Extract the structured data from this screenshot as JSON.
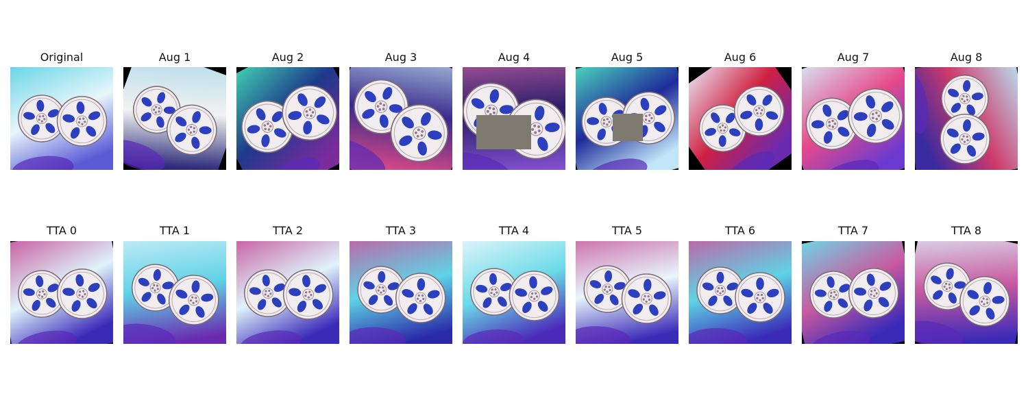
{
  "figure": {
    "rows": [
      {
        "name": "augmentations",
        "panels": [
          {
            "title": "Original",
            "rotation": -6,
            "scale": 1.0,
            "bg": [
              "#e8f6fb",
              "#5fd3e6",
              "#5a5ad6"
            ],
            "occluder": false
          },
          {
            "title": "Aug 1",
            "rotation": 20,
            "scale": 1.0,
            "bg": [
              "#f2f2f2",
              "#a8d8e8",
              "#2b2b7a"
            ],
            "occluder": false
          },
          {
            "title": "Aug 2",
            "rotation": -28,
            "scale": 1.1,
            "bg": [
              "#1d3a8a",
              "#45e0b6",
              "#7a2b9c"
            ],
            "occluder": false
          },
          {
            "title": "Aug 3",
            "rotation": 25,
            "scale": 1.15,
            "bg": [
              "#3a2a8c",
              "#c2e6f2",
              "#e04a86"
            ],
            "occluder": false
          },
          {
            "title": "Aug 4",
            "rotation": 12,
            "scale": 1.2,
            "bg": [
              "#2a1d6b",
              "#d86aa8",
              "#8a55d8"
            ],
            "occluder": true
          },
          {
            "title": "Aug 5",
            "rotation": -15,
            "scale": 1.05,
            "bg": [
              "#1f2b9a",
              "#4fe0c0",
              "#c0e6f8"
            ],
            "occluder": true
          },
          {
            "title": "Aug 6",
            "rotation": -35,
            "scale": 1.0,
            "bg": [
              "#d02040",
              "#e8eaf8",
              "#6a2ab0"
            ],
            "occluder": false
          },
          {
            "title": "Aug 7",
            "rotation": -20,
            "scale": 1.1,
            "bg": [
              "#e64a8a",
              "#d6f0fa",
              "#6a3ad0"
            ],
            "occluder": false
          },
          {
            "title": "Aug 8",
            "rotation": 80,
            "scale": 1.0,
            "bg": [
              "#cf3a6a",
              "#b8e4f4",
              "#3a2aa0"
            ],
            "occluder": false
          }
        ]
      },
      {
        "name": "tta",
        "panels": [
          {
            "title": "TTA 0",
            "rotation": -10,
            "scale": 1.0,
            "bg": [
              "#dff4fb",
              "#c85aa0",
              "#3a2ab8"
            ],
            "occluder": false
          },
          {
            "title": "TTA 1",
            "rotation": 8,
            "scale": 1.0,
            "bg": [
              "#5fd3e6",
              "#d6f0fa",
              "#6a2ab0"
            ],
            "occluder": false
          },
          {
            "title": "TTA 2",
            "rotation": -8,
            "scale": 1.0,
            "bg": [
              "#dff4fb",
              "#c85aa0",
              "#3a2ab8"
            ],
            "occluder": false
          },
          {
            "title": "TTA 3",
            "rotation": 2,
            "scale": 1.0,
            "bg": [
              "#5fd3e6",
              "#c85aa0",
              "#2a2aa8"
            ],
            "occluder": false
          },
          {
            "title": "TTA 4",
            "rotation": -4,
            "scale": 1.0,
            "bg": [
              "#6adbe8",
              "#e8f6fb",
              "#4a2ab8"
            ],
            "occluder": false
          },
          {
            "title": "TTA 5",
            "rotation": 4,
            "scale": 1.0,
            "bg": [
              "#e8f6fb",
              "#c85aa0",
              "#3a2ab8"
            ],
            "occluder": false
          },
          {
            "title": "TTA 6",
            "rotation": 0,
            "scale": 1.0,
            "bg": [
              "#5fd3e6",
              "#c85aa0",
              "#3a2ab8"
            ],
            "occluder": false
          },
          {
            "title": "TTA 7",
            "rotation": -12,
            "scale": 1.0,
            "bg": [
              "#c85aa0",
              "#6adbe8",
              "#3a2ab8"
            ],
            "occluder": false
          },
          {
            "title": "TTA 8",
            "rotation": 12,
            "scale": 1.0,
            "bg": [
              "#c85aa0",
              "#dff4fb",
              "#3a2ab8"
            ],
            "occluder": false
          }
        ]
      }
    ],
    "colors": {
      "rim": "#f1ecee",
      "rim_edge": "#7a6a74",
      "spoke_hole": "#2b3fbf",
      "hub": "#efe6ec",
      "occluder": "#7f7a6f",
      "border_fill": "#000000"
    }
  }
}
